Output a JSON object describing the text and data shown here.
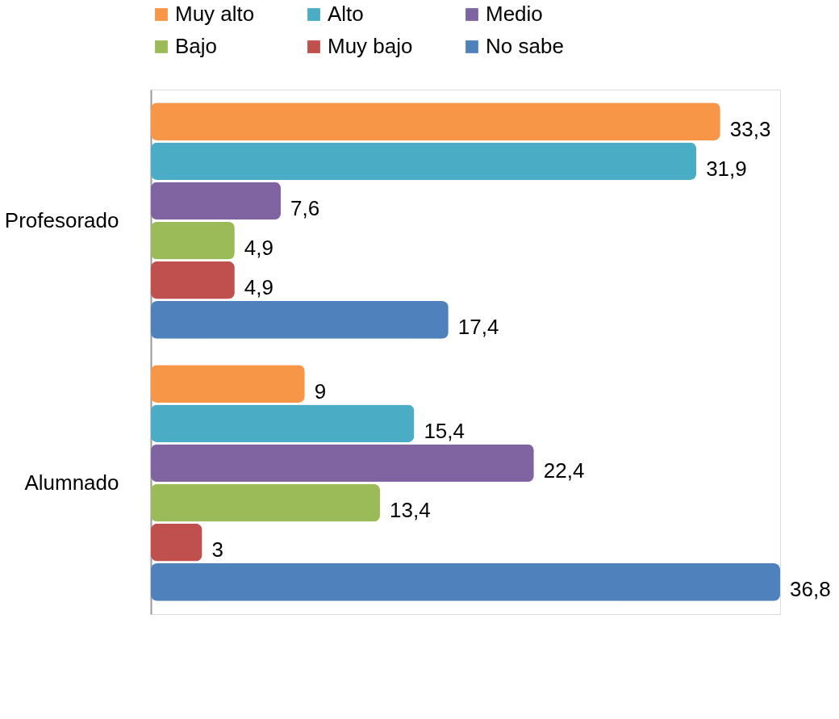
{
  "chart_data": {
    "type": "bar",
    "orientation": "horizontal",
    "categories": [
      "Profesorado",
      "Alumnado"
    ],
    "series": [
      {
        "name": "Muy alto",
        "color": "#f79646",
        "values": [
          33.3,
          9
        ],
        "value_labels": [
          "33,3",
          "9"
        ]
      },
      {
        "name": "Alto",
        "color": "#4bacc6",
        "values": [
          31.9,
          15.4
        ],
        "value_labels": [
          "31,9",
          "15,4"
        ]
      },
      {
        "name": "Medio",
        "color": "#8064a2",
        "values": [
          7.6,
          22.4
        ],
        "value_labels": [
          "7,6",
          "22,4"
        ]
      },
      {
        "name": "Bajo",
        "color": "#9bbb59",
        "values": [
          4.9,
          13.4
        ],
        "value_labels": [
          "4,9",
          "13,4"
        ]
      },
      {
        "name": "Muy bajo",
        "color": "#c0504d",
        "values": [
          4.9,
          3
        ],
        "value_labels": [
          "4,9",
          "3"
        ]
      },
      {
        "name": "No sabe",
        "color": "#4f81bd",
        "values": [
          17.4,
          36.8
        ],
        "value_labels": [
          "17,4",
          "36,8"
        ]
      }
    ],
    "legend": "top",
    "grid": false
  }
}
